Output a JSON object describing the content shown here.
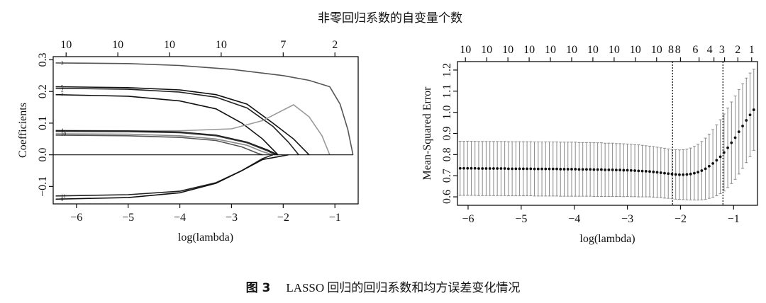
{
  "figure": {
    "top_title": "非零回归系数的自变量个数",
    "caption_label": "图 3",
    "caption_text": "LASSO 回归的回归系数和均方误差变化情况"
  },
  "chart_data": [
    {
      "type": "line",
      "panel": "left",
      "xlabel": "log(lambda)",
      "ylabel": "Coefficients",
      "xlim": [
        -6.45,
        -0.55
      ],
      "ylim": [
        -0.155,
        0.31
      ],
      "x_ticks": [
        -6,
        -5,
        -4,
        -3,
        -2,
        -1
      ],
      "x_tick_labels": [
        "−6",
        "−5",
        "−4",
        "−3",
        "−2",
        "−1"
      ],
      "y_ticks": [
        -0.1,
        0.0,
        0.1,
        0.2,
        0.3
      ],
      "y_tick_labels": [
        "−0.1",
        "0.0",
        "0.1",
        "0.2",
        "0.3"
      ],
      "top_ticks": [
        -6.2,
        -5.2,
        -4.2,
        -3.2,
        -2.0,
        -1.0
      ],
      "top_tick_labels": [
        "10",
        "10",
        "10",
        "10",
        "7",
        "2"
      ],
      "right_labels": [
        {
          "text": "3",
          "y": 0.29
        },
        {
          "text": "5",
          "y": 0.215
        },
        {
          "text": "2",
          "y": 0.205
        },
        {
          "text": "7",
          "y": 0.19
        },
        {
          "text": "4",
          "y": 0.077
        },
        {
          "text": "10",
          "y": 0.066
        },
        {
          "text": "11",
          "y": -0.13
        },
        {
          "text": "9",
          "y": -0.14
        }
      ],
      "series": [
        {
          "values": [
            [
              -6.4,
              0.29
            ],
            [
              -5,
              0.288
            ],
            [
              -4,
              0.282
            ],
            [
              -3,
              0.27
            ],
            [
              -2,
              0.25
            ],
            [
              -1.5,
              0.235
            ],
            [
              -1.1,
              0.215
            ],
            [
              -0.9,
              0.16
            ],
            [
              -0.75,
              0.08
            ],
            [
              -0.65,
              0.0
            ]
          ],
          "color": "#555555"
        },
        {
          "values": [
            [
              -6.4,
              0.215
            ],
            [
              -5,
              0.212
            ],
            [
              -4,
              0.205
            ],
            [
              -3.3,
              0.19
            ],
            [
              -2.7,
              0.16
            ],
            [
              -2.2,
              0.1
            ],
            [
              -1.8,
              0.05
            ],
            [
              -1.5,
              0.0
            ]
          ],
          "color": "#111111"
        },
        {
          "values": [
            [
              -6.4,
              0.21
            ],
            [
              -5,
              0.207
            ],
            [
              -4,
              0.198
            ],
            [
              -3.3,
              0.182
            ],
            [
              -2.7,
              0.148
            ],
            [
              -2.2,
              0.09
            ],
            [
              -1.9,
              0.04
            ],
            [
              -1.7,
              0.0
            ]
          ],
          "color": "#222222"
        },
        {
          "values": [
            [
              -6.4,
              0.19
            ],
            [
              -5,
              0.185
            ],
            [
              -4,
              0.17
            ],
            [
              -3.3,
              0.145
            ],
            [
              -2.8,
              0.1
            ],
            [
              -2.4,
              0.05
            ],
            [
              -2.1,
              0.0
            ]
          ],
          "color": "#111111"
        },
        {
          "values": [
            [
              -6.4,
              0.077
            ],
            [
              -5,
              0.076
            ],
            [
              -4,
              0.076
            ],
            [
              -3,
              0.082
            ],
            [
              -2.4,
              0.108
            ],
            [
              -1.8,
              0.158
            ],
            [
              -1.5,
              0.12
            ],
            [
              -1.25,
              0.06
            ],
            [
              -1.1,
              0.0
            ]
          ],
          "color": "#9a9a9a"
        },
        {
          "values": [
            [
              -6.4,
              0.076
            ],
            [
              -5,
              0.075
            ],
            [
              -4,
              0.072
            ],
            [
              -3.3,
              0.062
            ],
            [
              -2.7,
              0.04
            ],
            [
              -2.3,
              0.015
            ],
            [
              -2.1,
              0.0
            ]
          ],
          "color": "#111111"
        },
        {
          "values": [
            [
              -6.4,
              0.074
            ],
            [
              -5,
              0.073
            ],
            [
              -4,
              0.07
            ],
            [
              -3.3,
              0.06
            ],
            [
              -2.7,
              0.038
            ],
            [
              -2.3,
              0.012
            ],
            [
              -2.15,
              0.0
            ]
          ],
          "color": "#333333"
        },
        {
          "values": [
            [
              -6.4,
              0.066
            ],
            [
              -5,
              0.065
            ],
            [
              -4,
              0.06
            ],
            [
              -3.3,
              0.05
            ],
            [
              -2.7,
              0.03
            ],
            [
              -2.4,
              0.01
            ],
            [
              -2.2,
              0.0
            ]
          ],
          "color": "#888888"
        },
        {
          "values": [
            [
              -6.4,
              0.062
            ],
            [
              -5,
              0.06
            ],
            [
              -4,
              0.055
            ],
            [
              -3.3,
              0.045
            ],
            [
              -2.8,
              0.025
            ],
            [
              -2.5,
              0.005
            ],
            [
              -2.4,
              0.0
            ]
          ],
          "color": "#555555"
        },
        {
          "values": [
            [
              -6.4,
              -0.13
            ],
            [
              -5,
              -0.126
            ],
            [
              -4,
              -0.115
            ],
            [
              -3.3,
              -0.088
            ],
            [
              -2.8,
              -0.05
            ],
            [
              -2.4,
              -0.012
            ],
            [
              -2.2,
              0.0
            ]
          ],
          "color": "#222222"
        },
        {
          "values": [
            [
              -6.4,
              -0.14
            ],
            [
              -5,
              -0.135
            ],
            [
              -4,
              -0.12
            ],
            [
              -3.3,
              -0.09
            ],
            [
              -2.8,
              -0.05
            ],
            [
              -2.4,
              -0.015
            ],
            [
              -1.9,
              0.0
            ]
          ],
          "color": "#111111"
        }
      ]
    },
    {
      "type": "scatter",
      "panel": "right",
      "xlabel": "log(lambda)",
      "ylabel": "Mean-Squared Error",
      "xlim": [
        -6.2,
        -0.55
      ],
      "ylim": [
        0.56,
        1.24
      ],
      "x_ticks": [
        -6,
        -5,
        -4,
        -3,
        -2,
        -1
      ],
      "x_tick_labels": [
        "−6",
        "−5",
        "−4",
        "−3",
        "−2",
        "−1"
      ],
      "y_ticks": [
        0.6,
        0.7,
        0.8,
        0.9,
        1.0,
        1.1,
        1.2
      ],
      "y_tick_labels": [
        "0.6",
        "0.7",
        "0.8",
        "0.9",
        "1.0",
        "1.1",
        "1.2"
      ],
      "top_ticks": [
        -6.05,
        -5.65,
        -5.25,
        -4.85,
        -4.45,
        -4.05,
        -3.65,
        -3.25,
        -2.85,
        -2.45,
        -2.0,
        -1.65,
        -1.37,
        -1.17,
        -0.92,
        -0.66
      ],
      "top_tick_labels": [
        "10",
        "10",
        "10",
        "10",
        "10",
        "10",
        "10",
        "10",
        "10",
        "10",
        "8",
        "8",
        "6",
        "4",
        "3",
        "2",
        "1"
      ],
      "top_label_positions": [
        -6.05,
        -5.65,
        -5.25,
        -4.85,
        -4.45,
        -4.05,
        -3.65,
        -3.25,
        -2.85,
        -2.45,
        -2.05,
        -2.18,
        -1.72,
        -1.45,
        -1.22,
        -0.92,
        -0.66
      ],
      "vlines": [
        -2.15,
        -1.2
      ],
      "points_x_start": -6.15,
      "points_x_step": 0.07,
      "points_mean": [
        0.735,
        0.735,
        0.735,
        0.735,
        0.735,
        0.734,
        0.734,
        0.734,
        0.734,
        0.734,
        0.734,
        0.734,
        0.734,
        0.733,
        0.733,
        0.733,
        0.733,
        0.733,
        0.733,
        0.733,
        0.732,
        0.732,
        0.732,
        0.732,
        0.732,
        0.732,
        0.732,
        0.731,
        0.731,
        0.731,
        0.731,
        0.731,
        0.73,
        0.73,
        0.73,
        0.73,
        0.729,
        0.729,
        0.729,
        0.728,
        0.728,
        0.728,
        0.727,
        0.727,
        0.726,
        0.726,
        0.725,
        0.724,
        0.723,
        0.722,
        0.721,
        0.72,
        0.718,
        0.716,
        0.714,
        0.712,
        0.71,
        0.708,
        0.706,
        0.705,
        0.705,
        0.706,
        0.708,
        0.712,
        0.717,
        0.724,
        0.733,
        0.745,
        0.758,
        0.773,
        0.79,
        0.81,
        0.832,
        0.856,
        0.88,
        0.908,
        0.935,
        0.962,
        0.988,
        1.012
      ],
      "points_err": [
        0.128,
        0.128,
        0.128,
        0.128,
        0.128,
        0.128,
        0.128,
        0.128,
        0.128,
        0.128,
        0.128,
        0.128,
        0.128,
        0.128,
        0.128,
        0.128,
        0.128,
        0.128,
        0.128,
        0.128,
        0.128,
        0.128,
        0.128,
        0.128,
        0.128,
        0.128,
        0.128,
        0.128,
        0.128,
        0.128,
        0.128,
        0.128,
        0.127,
        0.127,
        0.127,
        0.127,
        0.127,
        0.127,
        0.127,
        0.126,
        0.126,
        0.126,
        0.125,
        0.125,
        0.125,
        0.124,
        0.124,
        0.123,
        0.123,
        0.122,
        0.121,
        0.12,
        0.12,
        0.119,
        0.118,
        0.118,
        0.117,
        0.117,
        0.117,
        0.117,
        0.118,
        0.12,
        0.123,
        0.127,
        0.132,
        0.138,
        0.145,
        0.152,
        0.16,
        0.168,
        0.175,
        0.182,
        0.188,
        0.193,
        0.197,
        0.2,
        0.2,
        0.2,
        0.198,
        0.192
      ]
    }
  ]
}
